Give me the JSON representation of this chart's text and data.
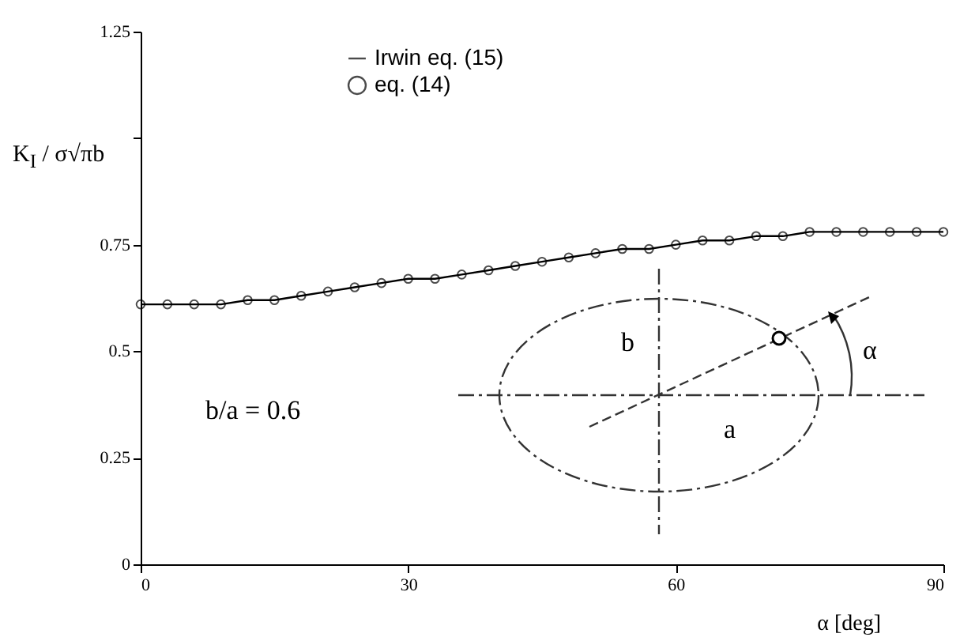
{
  "chart_data": {
    "type": "line",
    "ylabel": "K$_{I}$ / σ√πb",
    "xlabel": "α  [deg]",
    "x": [
      0,
      3,
      6,
      9,
      12,
      15,
      18,
      21,
      24,
      27,
      30,
      33,
      36,
      39,
      42,
      45,
      48,
      51,
      54,
      57,
      60,
      63,
      66,
      69,
      72,
      75,
      78,
      81,
      84,
      87,
      90
    ],
    "series": [
      {
        "name": "Irwin eq. (15)",
        "color": "#000000",
        "line_style": "solid",
        "values": [
          0.61,
          0.61,
          0.61,
          0.61,
          0.62,
          0.62,
          0.63,
          0.64,
          0.65,
          0.66,
          0.67,
          0.67,
          0.68,
          0.69,
          0.7,
          0.71,
          0.72,
          0.73,
          0.74,
          0.74,
          0.75,
          0.76,
          0.76,
          0.77,
          0.77,
          0.78,
          0.78,
          0.78,
          0.78,
          0.78,
          0.78
        ]
      },
      {
        "name": "eq. (14)",
        "type": "scatter",
        "color": "#000000",
        "marker": "circle",
        "values": [
          0.61,
          0.61,
          0.61,
          0.61,
          0.62,
          0.62,
          0.63,
          0.64,
          0.65,
          0.66,
          0.67,
          0.67,
          0.68,
          0.69,
          0.7,
          0.71,
          0.72,
          0.73,
          0.74,
          0.74,
          0.75,
          0.76,
          0.76,
          0.77,
          0.77,
          0.78,
          0.78,
          0.78,
          0.78,
          0.78,
          0.78
        ]
      }
    ],
    "xlim": [
      0,
      90
    ],
    "xticks": [
      0,
      30,
      60,
      90
    ],
    "ylim": [
      0,
      1.25
    ],
    "yticks": [
      0,
      0.25,
      0.5,
      0.75,
      {
        "value": 1,
        "label": null
      },
      1.25
    ],
    "grid": false,
    "legend": "top left",
    "annotations": [
      "b/a = 0.6",
      "b",
      "a",
      "α"
    ]
  }
}
